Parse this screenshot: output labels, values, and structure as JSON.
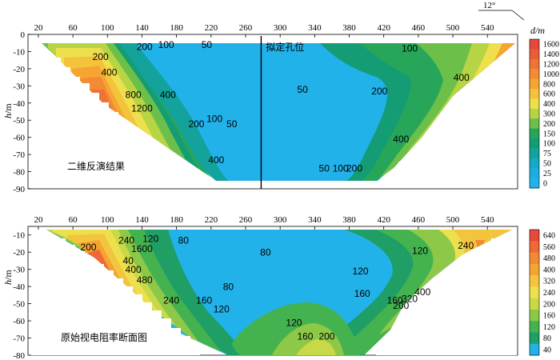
{
  "compass_label": "12°",
  "chart_data": [
    {
      "type": "contour",
      "title": "二维反演结果",
      "annotation": "拟定孔位",
      "annotation_x": 278,
      "ylabel_italic": "h",
      "ylabel_unit": "/m",
      "xticks": [
        20,
        60,
        100,
        140,
        180,
        220,
        260,
        300,
        340,
        380,
        420,
        460,
        500,
        540
      ],
      "yticks": [
        0,
        -10,
        -20,
        -30,
        -40,
        -50,
        -60,
        -70,
        -80,
        -90
      ],
      "xlim": [
        8,
        575
      ],
      "ylim": [
        -90,
        0
      ],
      "colorbar_title": "d/m",
      "colorbar": [
        {
          "value": "1600",
          "color": "#e8483b"
        },
        {
          "value": "1400",
          "color": "#ec5c38"
        },
        {
          "value": "1200",
          "color": "#ef7336"
        },
        {
          "value": "1000",
          "color": "#f28b33"
        },
        {
          "value": "800",
          "color": "#f6a532"
        },
        {
          "value": "600",
          "color": "#f3c33c"
        },
        {
          "value": "400",
          "color": "#eee04d"
        },
        {
          "value": "300",
          "color": "#b7d444"
        },
        {
          "value": "200",
          "color": "#6cc04a"
        },
        {
          "value": "150",
          "color": "#27a65a"
        },
        {
          "value": "100",
          "color": "#149c74"
        },
        {
          "value": "75",
          "color": "#14a39c"
        },
        {
          "value": "50",
          "color": "#15a9c6"
        },
        {
          "value": "25",
          "color": "#1aaee0"
        },
        {
          "value": "0",
          "color": "#22b2ea"
        }
      ],
      "contour_labels": [
        {
          "text": "200",
          "x": 92,
          "y": -15
        },
        {
          "text": "400",
          "x": 102,
          "y": -24
        },
        {
          "text": "200",
          "x": 143,
          "y": -9
        },
        {
          "text": "100",
          "x": 168,
          "y": -8
        },
        {
          "text": "50",
          "x": 215,
          "y": -8
        },
        {
          "text": "800",
          "x": 130,
          "y": -37
        },
        {
          "text": "1200",
          "x": 140,
          "y": -45
        },
        {
          "text": "400",
          "x": 170,
          "y": -37
        },
        {
          "text": "200",
          "x": 203,
          "y": -54
        },
        {
          "text": "100",
          "x": 224,
          "y": -51
        },
        {
          "text": "50",
          "x": 244,
          "y": -54
        },
        {
          "text": "400",
          "x": 226,
          "y": -75
        },
        {
          "text": "100",
          "x": 450,
          "y": -10
        },
        {
          "text": "50",
          "x": 326,
          "y": -34
        },
        {
          "text": "200",
          "x": 415,
          "y": -35
        },
        {
          "text": "400",
          "x": 510,
          "y": -27
        },
        {
          "text": "400",
          "x": 440,
          "y": -63
        },
        {
          "text": "50",
          "x": 351,
          "y": -80
        },
        {
          "text": "100",
          "x": 370,
          "y": -80
        },
        {
          "text": "200",
          "x": 386,
          "y": -80
        }
      ]
    },
    {
      "type": "contour",
      "title": "原始视电阻率断面图",
      "ylabel_italic": "h",
      "ylabel_unit": "/m",
      "xticks": [
        20,
        60,
        100,
        140,
        180,
        220,
        260,
        300,
        340,
        380,
        420,
        460,
        500,
        540
      ],
      "yticks": [
        -10,
        -20,
        -30,
        -40,
        -50,
        -60,
        -70,
        -80
      ],
      "xlim": [
        8,
        575
      ],
      "ylim": [
        -80,
        -5
      ],
      "colorbar_title": "",
      "colorbar": [
        {
          "value": "640",
          "color": "#e8483b"
        },
        {
          "value": "560",
          "color": "#ef6836"
        },
        {
          "value": "480",
          "color": "#f28a33"
        },
        {
          "value": "400",
          "color": "#f5a432"
        },
        {
          "value": "320",
          "color": "#f3c53e"
        },
        {
          "value": "240",
          "color": "#eee04d"
        },
        {
          "value": "200",
          "color": "#c8d947"
        },
        {
          "value": "160",
          "color": "#8dc848"
        },
        {
          "value": "120",
          "color": "#45b250"
        },
        {
          "value": "80",
          "color": "#1f9f66"
        },
        {
          "value": "40",
          "color": "#22b2ea"
        }
      ],
      "contour_labels": [
        {
          "text": "200",
          "x": 78,
          "y": -19
        },
        {
          "text": "240",
          "x": 122,
          "y": -15
        },
        {
          "text": "120",
          "x": 150,
          "y": -14
        },
        {
          "text": "80",
          "x": 188,
          "y": -15
        },
        {
          "text": "1600",
          "x": 140,
          "y": -20
        },
        {
          "text": "40",
          "x": 124,
          "y": -27
        },
        {
          "text": "400",
          "x": 130,
          "y": -32
        },
        {
          "text": "480",
          "x": 143,
          "y": -38
        },
        {
          "text": "80",
          "x": 283,
          "y": -22
        },
        {
          "text": "80",
          "x": 240,
          "y": -42
        },
        {
          "text": "240",
          "x": 174,
          "y": -50
        },
        {
          "text": "160",
          "x": 212,
          "y": -50
        },
        {
          "text": "120",
          "x": 232,
          "y": -55
        },
        {
          "text": "120",
          "x": 393,
          "y": -33
        },
        {
          "text": "120",
          "x": 462,
          "y": -21
        },
        {
          "text": "240",
          "x": 515,
          "y": -18
        },
        {
          "text": "160",
          "x": 395,
          "y": -46
        },
        {
          "text": "160",
          "x": 433,
          "y": -50
        },
        {
          "text": "200",
          "x": 440,
          "y": -53
        },
        {
          "text": "320",
          "x": 450,
          "y": -49
        },
        {
          "text": "400",
          "x": 465,
          "y": -45
        },
        {
          "text": "120",
          "x": 316,
          "y": -63
        },
        {
          "text": "160",
          "x": 329,
          "y": -71
        },
        {
          "text": "200",
          "x": 354,
          "y": -71
        }
      ]
    }
  ]
}
